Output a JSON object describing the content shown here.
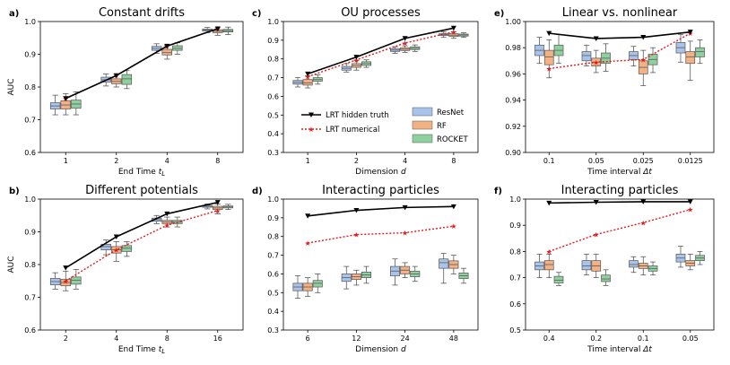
{
  "colors": {
    "resnet": "#a9c4eb",
    "rf": "#f4b183",
    "rocket": "#8fd19e",
    "hidden": "#000000",
    "numerical": "#e31a1c"
  },
  "legend": {
    "lrt_hidden": "LRT hidden truth",
    "lrt_numerical": "LRT numerical",
    "resnet": "ResNet",
    "rf": "RF",
    "rocket": "ROCKET"
  },
  "chart_data": [
    {
      "panel": "a)",
      "type": "box",
      "title": "Constant drifts",
      "xlabel": "End Time t_L",
      "xlabel_main": "End Time ",
      "xlabel_sym": "t",
      "xlabel_sub": "L",
      "ylabel": "AUC",
      "categories": [
        "1",
        "2",
        "4",
        "8"
      ],
      "ylim": [
        0.6,
        1.0
      ],
      "yticks": [
        "0.6",
        "0.7",
        "0.8",
        "0.9",
        "1.0"
      ],
      "lrt_hidden": [
        0.765,
        0.835,
        0.925,
        0.978
      ],
      "lrt_numerical": [
        0.765,
        0.835,
        0.925,
        0.978
      ],
      "boxes": {
        "resnet": [
          [
            0.715,
            0.733,
            0.742,
            0.752,
            0.775
          ],
          [
            0.803,
            0.815,
            0.822,
            0.83,
            0.84
          ],
          [
            0.903,
            0.912,
            0.918,
            0.924,
            0.932
          ],
          [
            0.966,
            0.971,
            0.974,
            0.977,
            0.982
          ]
        ],
        "rf": [
          [
            0.715,
            0.733,
            0.745,
            0.758,
            0.78
          ],
          [
            0.8,
            0.81,
            0.817,
            0.825,
            0.84
          ],
          [
            0.885,
            0.898,
            0.905,
            0.915,
            0.928
          ],
          [
            0.958,
            0.966,
            0.97,
            0.975,
            0.983
          ]
        ],
        "rocket": [
          [
            0.715,
            0.735,
            0.748,
            0.76,
            0.785
          ],
          [
            0.795,
            0.808,
            0.825,
            0.838,
            0.85
          ],
          [
            0.9,
            0.912,
            0.918,
            0.926,
            0.935
          ],
          [
            0.96,
            0.968,
            0.972,
            0.976,
            0.983
          ]
        ]
      }
    },
    {
      "panel": "c)",
      "type": "box",
      "title": "OU processes",
      "xlabel": "Dimension d",
      "xlabel_main": "Dimension ",
      "xlabel_sym": "d",
      "xlabel_sub": "",
      "ylabel": "",
      "categories": [
        "1",
        "2",
        "4",
        "8"
      ],
      "ylim": [
        0.3,
        1.0
      ],
      "yticks": [
        "0.3",
        "0.4",
        "0.5",
        "0.6",
        "0.7",
        "0.8",
        "0.9",
        "1.0"
      ],
      "lrt_hidden": [
        0.72,
        0.81,
        0.91,
        0.965
      ],
      "lrt_numerical": [
        0.705,
        0.795,
        0.885,
        0.945
      ],
      "boxes": {
        "resnet": [
          [
            0.65,
            0.665,
            0.675,
            0.685,
            0.7
          ],
          [
            0.73,
            0.74,
            0.75,
            0.76,
            0.775
          ],
          [
            0.83,
            0.84,
            0.847,
            0.855,
            0.865
          ],
          [
            0.915,
            0.925,
            0.93,
            0.935,
            0.945
          ]
        ],
        "rf": [
          [
            0.645,
            0.66,
            0.672,
            0.69,
            0.71
          ],
          [
            0.74,
            0.755,
            0.765,
            0.775,
            0.79
          ],
          [
            0.835,
            0.845,
            0.852,
            0.86,
            0.87
          ],
          [
            0.91,
            0.92,
            0.927,
            0.935,
            0.945
          ]
        ],
        "rocket": [
          [
            0.665,
            0.68,
            0.69,
            0.7,
            0.715
          ],
          [
            0.755,
            0.765,
            0.775,
            0.785,
            0.795
          ],
          [
            0.84,
            0.85,
            0.857,
            0.865,
            0.875
          ],
          [
            0.915,
            0.922,
            0.928,
            0.933,
            0.94
          ]
        ]
      },
      "legend_position": "lower-right"
    },
    {
      "panel": "e)",
      "type": "box",
      "title": "Linear vs. nonlinear",
      "xlabel": "Time interval Δt",
      "xlabel_main": "Time interval ",
      "xlabel_sym": "Δt",
      "xlabel_sub": "",
      "ylabel": "",
      "categories": [
        "0.1",
        "0.05",
        "0.025",
        "0.0125"
      ],
      "ylim": [
        0.9,
        1.0
      ],
      "yticks": [
        "0.90",
        "0.92",
        "0.94",
        "0.96",
        "0.98",
        "1.00"
      ],
      "lrt_hidden": [
        0.991,
        0.987,
        0.988,
        0.992
      ],
      "lrt_numerical": [
        0.964,
        0.969,
        0.971,
        0.991
      ],
      "boxes": {
        "resnet": [
          [
            0.968,
            0.974,
            0.978,
            0.982,
            0.988
          ],
          [
            0.966,
            0.97,
            0.974,
            0.977,
            0.982
          ],
          [
            0.966,
            0.971,
            0.974,
            0.977,
            0.981
          ],
          [
            0.969,
            0.976,
            0.98,
            0.984,
            0.99
          ]
        ],
        "rf": [
          [
            0.957,
            0.967,
            0.973,
            0.978,
            0.986
          ],
          [
            0.961,
            0.966,
            0.969,
            0.972,
            0.978
          ],
          [
            0.951,
            0.96,
            0.965,
            0.97,
            0.978
          ],
          [
            0.955,
            0.968,
            0.973,
            0.977,
            0.985
          ]
        ],
        "rocket": [
          [
            0.968,
            0.974,
            0.978,
            0.982,
            0.99
          ],
          [
            0.962,
            0.968,
            0.972,
            0.976,
            0.983
          ],
          [
            0.961,
            0.967,
            0.971,
            0.975,
            0.98
          ],
          [
            0.968,
            0.973,
            0.977,
            0.98,
            0.986
          ]
        ]
      }
    },
    {
      "panel": "b)",
      "type": "box",
      "title": "Different potentials",
      "xlabel": "End Time t_L",
      "xlabel_main": "End Time ",
      "xlabel_sym": "t",
      "xlabel_sub": "L",
      "ylabel": "AUC",
      "categories": [
        "2",
        "4",
        "8",
        "16"
      ],
      "ylim": [
        0.6,
        1.0
      ],
      "yticks": [
        "0.6",
        "0.7",
        "0.8",
        "0.9",
        "1.0"
      ],
      "lrt_hidden": [
        0.79,
        0.885,
        0.955,
        0.99
      ],
      "lrt_numerical": [
        0.75,
        0.845,
        0.92,
        0.965
      ],
      "boxes": {
        "resnet": [
          [
            0.725,
            0.738,
            0.748,
            0.758,
            0.775
          ],
          [
            0.83,
            0.845,
            0.855,
            0.862,
            0.875
          ],
          [
            0.925,
            0.932,
            0.937,
            0.942,
            0.95
          ],
          [
            0.97,
            0.975,
            0.978,
            0.981,
            0.985
          ]
        ],
        "rf": [
          [
            0.72,
            0.735,
            0.745,
            0.755,
            0.78
          ],
          [
            0.81,
            0.835,
            0.845,
            0.855,
            0.87
          ],
          [
            0.915,
            0.925,
            0.93,
            0.935,
            0.945
          ],
          [
            0.955,
            0.968,
            0.973,
            0.978,
            0.985
          ]
        ],
        "rocket": [
          [
            0.725,
            0.74,
            0.752,
            0.762,
            0.785
          ],
          [
            0.825,
            0.84,
            0.85,
            0.858,
            0.87
          ],
          [
            0.915,
            0.925,
            0.93,
            0.935,
            0.945
          ],
          [
            0.968,
            0.973,
            0.976,
            0.979,
            0.984
          ]
        ]
      }
    },
    {
      "panel": "d)",
      "type": "box",
      "title": "Interacting particles",
      "xlabel": "Dimension d",
      "xlabel_main": "Dimension ",
      "xlabel_sym": "d",
      "xlabel_sub": "",
      "ylabel": "",
      "categories": [
        "6",
        "12",
        "24",
        "48"
      ],
      "ylim": [
        0.3,
        1.0
      ],
      "yticks": [
        "0.3",
        "0.4",
        "0.5",
        "0.6",
        "0.7",
        "0.8",
        "0.9",
        "1.0"
      ],
      "lrt_hidden": [
        0.91,
        0.94,
        0.955,
        0.96
      ],
      "lrt_numerical": [
        0.765,
        0.81,
        0.82,
        0.855
      ],
      "boxes": {
        "resnet": [
          [
            0.47,
            0.51,
            0.53,
            0.55,
            0.59
          ],
          [
            0.52,
            0.56,
            0.58,
            0.6,
            0.64
          ],
          [
            0.54,
            0.59,
            0.615,
            0.64,
            0.68
          ],
          [
            0.55,
            0.63,
            0.66,
            0.68,
            0.71
          ]
        ],
        "rf": [
          [
            0.48,
            0.51,
            0.53,
            0.55,
            0.58
          ],
          [
            0.54,
            0.57,
            0.585,
            0.6,
            0.62
          ],
          [
            0.58,
            0.6,
            0.62,
            0.64,
            0.66
          ],
          [
            0.6,
            0.63,
            0.65,
            0.67,
            0.7
          ]
        ],
        "rocket": [
          [
            0.5,
            0.53,
            0.55,
            0.565,
            0.6
          ],
          [
            0.55,
            0.58,
            0.595,
            0.61,
            0.64
          ],
          [
            0.56,
            0.585,
            0.6,
            0.615,
            0.64
          ],
          [
            0.55,
            0.575,
            0.59,
            0.605,
            0.63
          ]
        ]
      }
    },
    {
      "panel": "f)",
      "type": "box",
      "title": "Interacting particles",
      "xlabel": "Time interval Δt",
      "xlabel_main": "Time interval ",
      "xlabel_sym": "Δt",
      "xlabel_sub": "",
      "ylabel": "",
      "categories": [
        "0.4",
        "0.2",
        "0.1",
        "0.05"
      ],
      "ylim": [
        0.5,
        1.0
      ],
      "yticks": [
        "0.5",
        "0.6",
        "0.7",
        "0.8",
        "0.9",
        "1.0"
      ],
      "lrt_hidden": [
        0.985,
        0.988,
        0.99,
        0.99
      ],
      "lrt_numerical": [
        0.8,
        0.865,
        0.91,
        0.96
      ],
      "boxes": {
        "resnet": [
          [
            0.7,
            0.73,
            0.745,
            0.76,
            0.79
          ],
          [
            0.71,
            0.73,
            0.745,
            0.765,
            0.79
          ],
          [
            0.72,
            0.74,
            0.75,
            0.765,
            0.78
          ],
          [
            0.74,
            0.76,
            0.775,
            0.79,
            0.82
          ]
        ],
        "rf": [
          [
            0.7,
            0.73,
            0.75,
            0.765,
            0.79
          ],
          [
            0.7,
            0.725,
            0.745,
            0.765,
            0.79
          ],
          [
            0.71,
            0.735,
            0.745,
            0.755,
            0.78
          ],
          [
            0.73,
            0.745,
            0.755,
            0.765,
            0.79
          ]
        ],
        "rocket": [
          [
            0.67,
            0.68,
            0.69,
            0.705,
            0.72
          ],
          [
            0.67,
            0.685,
            0.695,
            0.71,
            0.73
          ],
          [
            0.71,
            0.725,
            0.735,
            0.745,
            0.76
          ],
          [
            0.75,
            0.765,
            0.775,
            0.785,
            0.8
          ]
        ]
      }
    }
  ]
}
